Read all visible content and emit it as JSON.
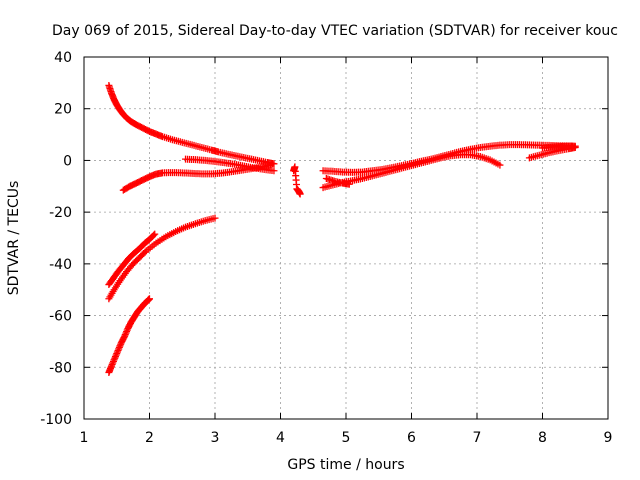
{
  "chart_data": {
    "type": "scatter",
    "title": "Day 069 of 2015, Sidereal Day-to-day VTEC variation (SDTVAR) for receiver kouc",
    "xlabel": "GPS time / hours",
    "ylabel": "SDTVAR / TECUs",
    "xlim": [
      1,
      9
    ],
    "ylim": [
      -100,
      40
    ],
    "x_ticks": [
      1,
      2,
      3,
      4,
      5,
      6,
      7,
      8,
      9
    ],
    "y_ticks": [
      -100,
      -80,
      -60,
      -40,
      -20,
      0,
      20,
      40
    ],
    "grid": true,
    "marker": "plus",
    "color": "#ff0000",
    "series": [
      {
        "x": [
          1.38,
          1.42,
          1.46,
          1.5,
          1.55,
          1.6,
          1.66,
          1.72,
          1.8,
          1.9,
          2.0,
          2.1,
          2.2,
          2.35,
          2.5,
          2.65,
          2.8,
          2.95,
          3.05,
          3.2,
          3.35,
          3.5,
          3.65,
          3.8,
          3.9
        ],
        "y": [
          29,
          26,
          23.5,
          21.5,
          19.5,
          17.8,
          16.2,
          15,
          13.8,
          12.5,
          11.2,
          10.2,
          9.2,
          8,
          7,
          6,
          5,
          4,
          3.3,
          2.4,
          1.6,
          0.8,
          0,
          -0.8,
          -1.3
        ]
      },
      {
        "x": [
          1.6,
          1.7,
          1.8,
          1.9,
          2.0,
          2.1,
          2.2,
          2.35,
          2.5,
          2.65,
          2.8,
          2.95,
          3.1,
          3.25,
          3.4,
          3.55,
          3.7,
          3.85
        ],
        "y": [
          -11.5,
          -10,
          -8.8,
          -7.5,
          -6.3,
          -5.3,
          -4.8,
          -4.7,
          -4.8,
          -5,
          -5.2,
          -5.2,
          -4.9,
          -4.4,
          -3.8,
          -3.2,
          -2.5,
          -1.8
        ]
      },
      {
        "x": [
          2.55,
          2.7,
          2.85,
          3.0,
          3.15,
          3.3,
          3.45,
          3.6,
          3.75,
          3.9
        ],
        "y": [
          0.5,
          0.3,
          0,
          -0.4,
          -0.9,
          -1.5,
          -2.2,
          -2.9,
          -3.5,
          -4
        ]
      },
      {
        "x": [
          1.38,
          1.45,
          1.52,
          1.6,
          1.68,
          1.76,
          1.85,
          1.93,
          2.0,
          2.08
        ],
        "y": [
          -48,
          -45.5,
          -43,
          -40.5,
          -38,
          -36,
          -34,
          -32,
          -30.5,
          -28.5
        ]
      },
      {
        "x": [
          1.38,
          1.46,
          1.55,
          1.65,
          1.75,
          1.85,
          1.95,
          2.1,
          2.25,
          2.4,
          2.55,
          2.7,
          2.85,
          3.0
        ],
        "y": [
          -53.5,
          -50,
          -46.5,
          -43,
          -40,
          -37.5,
          -35,
          -32,
          -29.5,
          -27.5,
          -25.8,
          -24.5,
          -23.3,
          -22.3
        ]
      },
      {
        "x": [
          1.38,
          1.42,
          1.47,
          1.52,
          1.57,
          1.62,
          1.67,
          1.72,
          1.77,
          1.82,
          1.87,
          1.92,
          1.97,
          2.0
        ],
        "y": [
          -82,
          -79.5,
          -76.5,
          -73.5,
          -70.5,
          -68,
          -65,
          -62.5,
          -60.5,
          -58.5,
          -57,
          -55.5,
          -54.3,
          -53.5
        ]
      },
      {
        "x": [
          4.2,
          4.22,
          4.25,
          4.28,
          4.3
        ],
        "y": [
          -4,
          -2.5,
          -11,
          -12,
          -13
        ]
      },
      {
        "x": [
          4.65,
          4.8,
          4.95,
          5.1,
          5.25,
          5.4,
          5.55,
          5.7,
          5.85,
          6.0,
          6.15,
          6.3,
          6.45,
          6.6,
          6.75,
          6.9,
          7.05,
          7.2,
          7.35,
          7.5,
          7.65,
          7.8,
          7.95,
          8.1,
          8.25,
          8.4,
          8.5
        ],
        "y": [
          -4,
          -4.2,
          -4.5,
          -4.6,
          -4.5,
          -4,
          -3.5,
          -2.8,
          -2,
          -1.2,
          -0.3,
          0.5,
          1.5,
          2.5,
          3.5,
          4.3,
          5,
          5.5,
          5.9,
          6.1,
          6.1,
          6,
          5.9,
          5.8,
          5.7,
          5.6,
          5.5
        ]
      },
      {
        "x": [
          4.65,
          4.8,
          4.95,
          5.1,
          5.25,
          5.4,
          5.55,
          5.7,
          5.85,
          6.0,
          6.15,
          6.3,
          6.45,
          6.6,
          6.75,
          6.9,
          7.05,
          7.2,
          7.35
        ],
        "y": [
          -10.5,
          -9.5,
          -8.5,
          -7.8,
          -7,
          -6,
          -5,
          -4,
          -3,
          -2,
          -1,
          0,
          1,
          1.8,
          2.2,
          2.2,
          1.5,
          0.2,
          -1.8
        ]
      },
      {
        "x": [
          4.7,
          4.82,
          4.95,
          5.05
        ],
        "y": [
          -7,
          -8,
          -8.8,
          -9.2
        ]
      },
      {
        "x": [
          7.8,
          7.95,
          8.1,
          8.25,
          8.4,
          8.5
        ],
        "y": [
          1,
          2,
          3,
          3.8,
          4.5,
          5
        ]
      },
      {
        "x": [
          8.0,
          8.15,
          8.3,
          8.45
        ],
        "y": [
          4.8,
          5.2,
          5.4,
          5.6
        ]
      }
    ]
  }
}
